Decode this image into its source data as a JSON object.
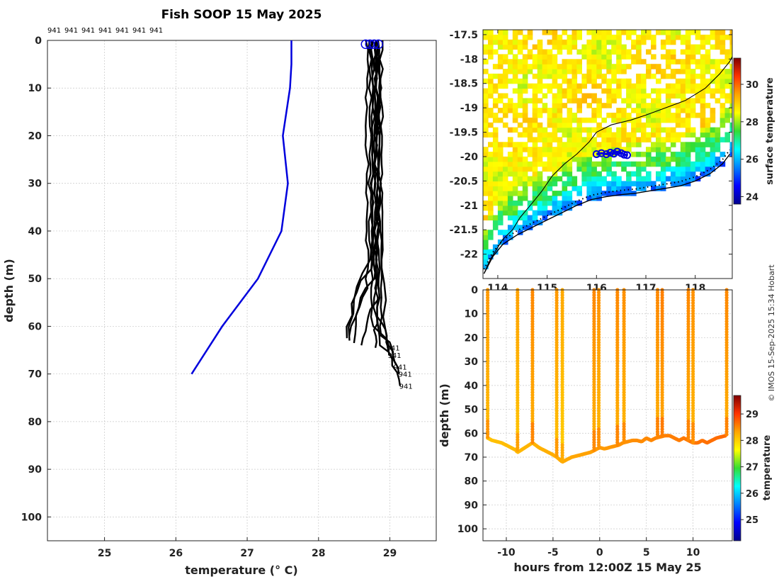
{
  "credit": "© IMOS 15-Sep-2025 15:34 Hobart",
  "chart_data": [
    {
      "id": "profile",
      "type": "line",
      "title": "Fish SOOP 15 May 2025",
      "xlabel": "temperature (° C)",
      "ylabel": "depth (m)",
      "xlim": [
        24.2,
        29.65
      ],
      "ylim": [
        0,
        105
      ],
      "y_inverted": true,
      "grid": true,
      "xticks": [
        25,
        26,
        27,
        28,
        29
      ],
      "yticks": [
        0,
        10,
        20,
        30,
        40,
        50,
        60,
        70,
        80,
        90,
        100
      ],
      "top_labels": [
        "941",
        "941",
        "941",
        "941",
        "941",
        "941",
        "941"
      ],
      "end_labels": [
        {
          "text": "941",
          "temp": 28.95,
          "depth": 64.5
        },
        {
          "text": "941",
          "temp": 28.97,
          "depth": 66.0
        },
        {
          "text": "941",
          "temp": 29.05,
          "depth": 68.5
        },
        {
          "text": "941",
          "temp": 29.12,
          "depth": 70.0
        },
        {
          "text": "941",
          "temp": 29.13,
          "depth": 72.5
        }
      ],
      "series": [
        {
          "name": "reference profile",
          "color": "#0000dd",
          "temps": [
            27.62,
            27.62,
            27.6,
            27.5,
            27.57,
            27.48,
            27.15,
            26.65,
            26.22
          ],
          "depths": [
            0,
            5,
            10,
            20,
            30,
            40,
            50,
            60,
            70
          ]
        }
      ],
      "profiles_color": "#000000",
      "profiles": [
        {
          "surface": 28.72,
          "bend_depth": 46,
          "bottom_depth": 63.0,
          "bottom_temp": 28.42
        },
        {
          "surface": 28.76,
          "bend_depth": 48,
          "bottom_depth": 62.5,
          "bottom_temp": 28.38
        },
        {
          "surface": 28.8,
          "bend_depth": 50,
          "bottom_depth": 62.0,
          "bottom_temp": 28.45
        },
        {
          "surface": 28.68,
          "bend_depth": 52,
          "bottom_depth": 63.5,
          "bottom_temp": 28.5
        },
        {
          "surface": 28.83,
          "bend_depth": 55,
          "bottom_depth": 64.0,
          "bottom_temp": 28.6
        },
        {
          "surface": 28.79,
          "bend_depth": 57,
          "bottom_depth": 64.5,
          "bottom_temp": 28.8
        },
        {
          "surface": 28.86,
          "bend_depth": 44,
          "bottom_depth": 65.0,
          "bottom_temp": 28.95
        },
        {
          "surface": 28.81,
          "bend_depth": 58,
          "bottom_depth": 66.0,
          "bottom_temp": 29.0
        },
        {
          "surface": 28.75,
          "bend_depth": 60,
          "bottom_depth": 68.0,
          "bottom_temp": 29.08
        },
        {
          "surface": 28.88,
          "bend_depth": 62,
          "bottom_depth": 70.0,
          "bottom_temp": 29.12
        },
        {
          "surface": 28.84,
          "bend_depth": 64,
          "bottom_depth": 72.5,
          "bottom_temp": 29.13
        }
      ],
      "surface_markers": [
        28.66,
        28.72,
        28.78,
        28.84
      ]
    },
    {
      "id": "map",
      "type": "heatmap",
      "xlim": [
        113.7,
        118.75
      ],
      "ylim": [
        -22.5,
        -17.4
      ],
      "xticks": [
        114,
        115,
        116,
        117,
        118
      ],
      "yticks": [
        -17.5,
        -18,
        -18.5,
        -19,
        -19.5,
        -20,
        -20.5,
        -21,
        -21.5,
        -22
      ],
      "colorbar_label": "surface temperature",
      "colorbar_ticks": [
        24,
        26,
        28,
        30
      ],
      "colorbar_range": [
        23.6,
        31.4
      ],
      "coastline": [
        [
          113.72,
          -22.4
        ],
        [
          113.9,
          -22.05
        ],
        [
          114.1,
          -21.8
        ],
        [
          114.4,
          -21.6
        ],
        [
          114.7,
          -21.45
        ],
        [
          115.0,
          -21.3
        ],
        [
          115.3,
          -21.15
        ],
        [
          115.6,
          -21.0
        ],
        [
          115.9,
          -20.88
        ],
        [
          116.2,
          -20.82
        ],
        [
          116.5,
          -20.78
        ],
        [
          116.8,
          -20.75
        ],
        [
          117.1,
          -20.7
        ],
        [
          117.4,
          -20.65
        ],
        [
          117.7,
          -20.6
        ],
        [
          118.0,
          -20.5
        ],
        [
          118.3,
          -20.35
        ],
        [
          118.55,
          -20.15
        ],
        [
          118.7,
          -19.95
        ]
      ],
      "shelf_contour": [
        [
          113.72,
          -22.4
        ],
        [
          113.85,
          -22.1
        ],
        [
          114.1,
          -21.7
        ],
        [
          114.3,
          -21.5
        ],
        [
          114.45,
          -21.25
        ],
        [
          114.7,
          -20.95
        ],
        [
          114.9,
          -20.7
        ],
        [
          115.1,
          -20.4
        ],
        [
          115.35,
          -20.15
        ],
        [
          115.6,
          -19.95
        ],
        [
          115.85,
          -19.7
        ],
        [
          116.0,
          -19.5
        ],
        [
          116.3,
          -19.35
        ],
        [
          116.7,
          -19.25
        ],
        [
          117.0,
          -19.15
        ],
        [
          117.4,
          -19.0
        ],
        [
          117.8,
          -18.85
        ],
        [
          118.2,
          -18.6
        ],
        [
          118.5,
          -18.3
        ],
        [
          118.7,
          -18.05
        ],
        [
          118.75,
          -17.95
        ]
      ],
      "cruise_points": [
        [
          116.0,
          -19.95
        ],
        [
          116.1,
          -19.93
        ],
        [
          116.2,
          -19.95
        ],
        [
          116.28,
          -19.92
        ],
        [
          116.35,
          -19.94
        ],
        [
          116.42,
          -19.9
        ],
        [
          116.5,
          -19.93
        ],
        [
          116.56,
          -19.96
        ],
        [
          116.62,
          -19.97
        ]
      ]
    },
    {
      "id": "section",
      "type": "scatter",
      "xlabel": "hours from 12:00Z 15 May 25",
      "ylabel": "depth (m)",
      "xlim": [
        -12.5,
        14.2
      ],
      "ylim": [
        0,
        105
      ],
      "y_inverted": true,
      "xticks": [
        -10,
        -5,
        0,
        5,
        10
      ],
      "yticks": [
        0,
        10,
        20,
        30,
        40,
        50,
        60,
        70,
        80,
        90,
        100
      ],
      "colorbar_label": "temperature",
      "colorbar_ticks": [
        25,
        26,
        27,
        28,
        29
      ],
      "colorbar_range": [
        24.2,
        29.7
      ],
      "bottom_trace": [
        [
          -12.0,
          62
        ],
        [
          -11.5,
          63
        ],
        [
          -11.0,
          63.5
        ],
        [
          -10.5,
          64
        ],
        [
          -10.0,
          65
        ],
        [
          -9.5,
          66
        ],
        [
          -9.0,
          67
        ],
        [
          -8.8,
          68
        ],
        [
          -7.2,
          64
        ],
        [
          -6.5,
          66
        ],
        [
          -6.0,
          67
        ],
        [
          -5.5,
          68
        ],
        [
          -5.0,
          69
        ],
        [
          -4.6,
          70
        ],
        [
          -4.3,
          71
        ],
        [
          -4.0,
          72
        ],
        [
          -3.5,
          71
        ],
        [
          -3.0,
          70
        ],
        [
          -2.5,
          69.5
        ],
        [
          -2.0,
          69
        ],
        [
          -1.5,
          68.5
        ],
        [
          -1.0,
          68
        ],
        [
          -0.5,
          67
        ],
        [
          0.0,
          66
        ],
        [
          0.5,
          66.5
        ],
        [
          1.0,
          66
        ],
        [
          1.5,
          65.5
        ],
        [
          2.0,
          65
        ],
        [
          2.5,
          64
        ],
        [
          3.0,
          63.5
        ],
        [
          3.5,
          63
        ],
        [
          4.0,
          63
        ],
        [
          4.5,
          63.5
        ],
        [
          5.0,
          62
        ],
        [
          5.5,
          63
        ],
        [
          6.0,
          62
        ],
        [
          6.5,
          61.5
        ],
        [
          7.0,
          61
        ],
        [
          7.5,
          61
        ],
        [
          8.0,
          62
        ],
        [
          8.5,
          63
        ],
        [
          9.0,
          62
        ],
        [
          9.5,
          63
        ],
        [
          10.0,
          64
        ],
        [
          10.5,
          64
        ],
        [
          11.0,
          63
        ],
        [
          11.5,
          64
        ],
        [
          12.0,
          63
        ],
        [
          12.5,
          62
        ],
        [
          13.0,
          61.5
        ],
        [
          13.5,
          61
        ]
      ],
      "casts": [
        {
          "hour": -12.0,
          "temp": 28.4
        },
        {
          "hour": -8.8,
          "temp": 28.35
        },
        {
          "hour": -7.2,
          "temp": 28.5
        },
        {
          "hour": -4.6,
          "temp": 28.4
        },
        {
          "hour": -4.0,
          "temp": 28.3
        },
        {
          "hour": -0.6,
          "temp": 28.5
        },
        {
          "hour": -0.1,
          "temp": 28.45
        },
        {
          "hour": 1.9,
          "temp": 28.5
        },
        {
          "hour": 2.6,
          "temp": 28.45
        },
        {
          "hour": 6.2,
          "temp": 28.5
        },
        {
          "hour": 6.7,
          "temp": 28.55
        },
        {
          "hour": 9.5,
          "temp": 28.5
        },
        {
          "hour": 10.0,
          "temp": 28.45
        },
        {
          "hour": 13.6,
          "temp": 28.5
        }
      ]
    }
  ]
}
